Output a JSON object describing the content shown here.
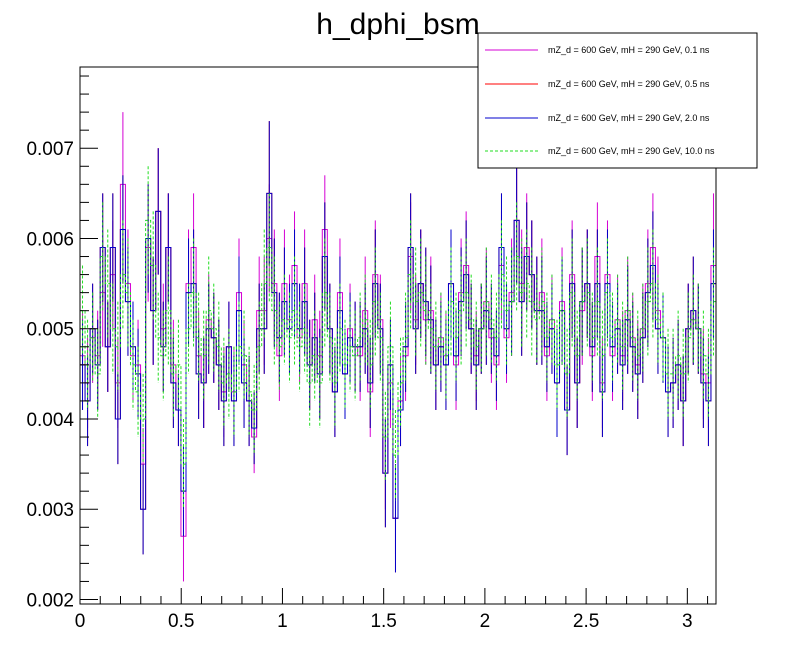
{
  "chart_data": {
    "type": "histogram",
    "title": "h_dphi_bsm",
    "xlabel": "",
    "ylabel": "",
    "xlim": [
      0,
      3.1416
    ],
    "ylim": [
      0.00195,
      0.0079
    ],
    "x_ticks": [
      0,
      0.5,
      1,
      1.5,
      2,
      2.5,
      3
    ],
    "x_tick_labels": [
      "0",
      "0.5",
      "1",
      "1.5",
      "2",
      "2.5",
      "3"
    ],
    "y_ticks": [
      0.002,
      0.003,
      0.004,
      0.005,
      0.006,
      0.007
    ],
    "y_tick_labels": [
      "0.002",
      "0.003",
      "0.004",
      "0.005",
      "0.006",
      "0.007"
    ],
    "legend_position": "top-right",
    "n_bins": 126,
    "series": [
      {
        "name": "mZ_d = 600 GeV, mH = 290 GeV, 0.1 ns",
        "color": "#d400d4",
        "line": "solid",
        "values": [
          0.0047,
          0.0044,
          0.0049,
          0.0047,
          0.0054,
          0.0048,
          0.0056,
          0.0044,
          0.0066,
          0.0055,
          0.0047,
          0.0046,
          0.0035,
          0.0059,
          0.0052,
          0.0063,
          0.005,
          0.0059,
          0.0046,
          0.0041,
          0.0027,
          0.0055,
          0.0059,
          0.0047,
          0.0044,
          0.0051,
          0.0049,
          0.0046,
          0.0043,
          0.0048,
          0.0043,
          0.0054,
          0.0046,
          0.0042,
          0.0038,
          0.0052,
          0.0052,
          0.006,
          0.0055,
          0.0047,
          0.0055,
          0.0051,
          0.0057,
          0.0049,
          0.0055,
          0.0046,
          0.0051,
          0.0047,
          0.0061,
          0.005,
          0.0043,
          0.0054,
          0.0045,
          0.005,
          0.0048,
          0.0047,
          0.0052,
          0.0043,
          0.0056,
          0.0051,
          0.0034,
          0.0044,
          0.0029,
          0.0042,
          0.0047,
          0.0058,
          0.0051,
          0.0055,
          0.0051,
          0.0052,
          0.0046,
          0.0049,
          0.0047,
          0.0055,
          0.0046,
          0.0054,
          0.0057,
          0.005,
          0.0047,
          0.005,
          0.0053,
          0.0049,
          0.0046,
          0.0057,
          0.0049,
          0.0054,
          0.0062,
          0.0055,
          0.0059,
          0.0056,
          0.0052,
          0.0054,
          0.0047,
          0.0051,
          0.0044,
          0.0053,
          0.0041,
          0.0056,
          0.0044,
          0.0052,
          0.0055,
          0.0047,
          0.0058,
          0.0044,
          0.0056,
          0.0047,
          0.0051,
          0.0047,
          0.0052,
          0.0049,
          0.0046,
          0.005,
          0.0055,
          0.0059,
          0.0052,
          0.0049,
          0.0043,
          0.0044,
          0.0046,
          0.0042,
          0.005,
          0.0051,
          0.005,
          0.0045,
          0.0044,
          0.0057
        ],
        "errors": [
          0.0005,
          0.0005,
          0.0005,
          0.0005,
          0.0006,
          0.0005,
          0.0006,
          0.0005,
          0.0008,
          0.0006,
          0.0005,
          0.0005,
          0.0004,
          0.0006,
          0.0006,
          0.0007,
          0.0005,
          0.0006,
          0.0005,
          0.0004,
          0.0005,
          0.0006,
          0.0006,
          0.0005,
          0.0005,
          0.0005,
          0.0005,
          0.0005,
          0.0005,
          0.0005,
          0.0005,
          0.0006,
          0.0005,
          0.0005,
          0.0004,
          0.0006,
          0.0006,
          0.0006,
          0.0006,
          0.0005,
          0.0006,
          0.0005,
          0.0006,
          0.0005,
          0.0006,
          0.0005,
          0.0005,
          0.0005,
          0.0006,
          0.0005,
          0.0005,
          0.0006,
          0.0005,
          0.0005,
          0.0005,
          0.0005,
          0.0006,
          0.0005,
          0.0006,
          0.0005,
          0.0004,
          0.0005,
          0.0004,
          0.0005,
          0.0005,
          0.0006,
          0.0005,
          0.0006,
          0.0005,
          0.0006,
          0.0005,
          0.0005,
          0.0005,
          0.0006,
          0.0005,
          0.0006,
          0.0006,
          0.0005,
          0.0005,
          0.0005,
          0.0006,
          0.0005,
          0.0005,
          0.0006,
          0.0005,
          0.0006,
          0.0007,
          0.0006,
          0.0006,
          0.0006,
          0.0006,
          0.0006,
          0.0005,
          0.0005,
          0.0005,
          0.0006,
          0.0005,
          0.0006,
          0.0005,
          0.0006,
          0.0006,
          0.0005,
          0.0006,
          0.0005,
          0.0006,
          0.0005,
          0.0005,
          0.0005,
          0.0006,
          0.0005,
          0.0005,
          0.0005,
          0.0006,
          0.0006,
          0.0006,
          0.0005,
          0.0005,
          0.0005,
          0.0005,
          0.0005,
          0.0005,
          0.0005,
          0.0005,
          0.0005,
          0.0005,
          0.0008
        ]
      },
      {
        "name": "mZ_d = 600 GeV, mH = 290 GeV, 0.5 ns",
        "color": "#ff0000",
        "line": "solid",
        "values": [
          0.0046,
          0.0042,
          0.005,
          0.0046,
          0.0059,
          0.0048,
          0.0059,
          0.004,
          0.0061,
          0.0053,
          0.0048,
          0.0045,
          0.003,
          0.006,
          0.0052,
          0.0063,
          0.0048,
          0.0059,
          0.0044,
          0.0041,
          0.0032,
          0.0054,
          0.0055,
          0.0045,
          0.0044,
          0.005,
          0.0049,
          0.0046,
          0.0042,
          0.0048,
          0.0042,
          0.0052,
          0.0044,
          0.0042,
          0.0039,
          0.005,
          0.005,
          0.0065,
          0.0054,
          0.0049,
          0.0053,
          0.005,
          0.0055,
          0.005,
          0.0053,
          0.0046,
          0.0049,
          0.0045,
          0.0058,
          0.005,
          0.0043,
          0.0052,
          0.0045,
          0.0049,
          0.0048,
          0.0048,
          0.005,
          0.0044,
          0.0055,
          0.005,
          0.0034,
          0.0046,
          0.0029,
          0.0041,
          0.0048,
          0.0059,
          0.005,
          0.0055,
          0.0053,
          0.0051,
          0.0046,
          0.0048,
          0.0046,
          0.0055,
          0.0047,
          0.0053,
          0.0056,
          0.005,
          0.0046,
          0.005,
          0.0052,
          0.005,
          0.0047,
          0.0059,
          0.005,
          0.0053,
          0.0062,
          0.0053,
          0.0058,
          0.0056,
          0.0052,
          0.0052,
          0.0048,
          0.005,
          0.0044,
          0.0052,
          0.0041,
          0.0055,
          0.0044,
          0.0053,
          0.0055,
          0.0048,
          0.0055,
          0.0043,
          0.0055,
          0.0048,
          0.005,
          0.0046,
          0.0051,
          0.0048,
          0.0045,
          0.0049,
          0.0054,
          0.0057,
          0.005,
          0.0049,
          0.0043,
          0.0044,
          0.0046,
          0.0042,
          0.005,
          0.0052,
          0.005,
          0.0044,
          0.0042,
          0.0055
        ],
        "errors": [
          0.0005,
          0.0005,
          0.0005,
          0.0005,
          0.0006,
          0.0005,
          0.0006,
          0.0005,
          0.0006,
          0.0006,
          0.0005,
          0.0005,
          0.0005,
          0.0006,
          0.0006,
          0.0007,
          0.0005,
          0.0006,
          0.0005,
          0.0004,
          0.0005,
          0.0006,
          0.0006,
          0.0005,
          0.0005,
          0.0005,
          0.0005,
          0.0005,
          0.0005,
          0.0005,
          0.0005,
          0.0006,
          0.0005,
          0.0005,
          0.0004,
          0.0005,
          0.0005,
          0.0008,
          0.0006,
          0.0005,
          0.0006,
          0.0005,
          0.0006,
          0.0005,
          0.0006,
          0.0005,
          0.0005,
          0.0005,
          0.0006,
          0.0005,
          0.0005,
          0.0006,
          0.0005,
          0.0005,
          0.0005,
          0.0005,
          0.0005,
          0.0005,
          0.0006,
          0.0005,
          0.0006,
          0.0005,
          0.0006,
          0.0004,
          0.0005,
          0.0006,
          0.0005,
          0.0006,
          0.0006,
          0.0006,
          0.0005,
          0.0005,
          0.0005,
          0.0006,
          0.0005,
          0.0006,
          0.0006,
          0.0005,
          0.0005,
          0.0005,
          0.0006,
          0.0005,
          0.0005,
          0.0006,
          0.0005,
          0.0006,
          0.0007,
          0.0006,
          0.0006,
          0.0006,
          0.0006,
          0.0006,
          0.0005,
          0.0005,
          0.0006,
          0.0006,
          0.0005,
          0.0006,
          0.0005,
          0.0006,
          0.0006,
          0.0005,
          0.0006,
          0.0005,
          0.0006,
          0.0005,
          0.0005,
          0.0005,
          0.0006,
          0.0005,
          0.0005,
          0.0005,
          0.0006,
          0.0006,
          0.0005,
          0.0005,
          0.0005,
          0.0005,
          0.0005,
          0.0005,
          0.0005,
          0.0006,
          0.0005,
          0.0005,
          0.0005,
          0.0006
        ]
      },
      {
        "name": "mZ_d = 600 GeV, mH = 290 GeV, 2.0 ns",
        "color": "#0000cc",
        "line": "solid",
        "values": [
          0.0046,
          0.0042,
          0.005,
          0.0046,
          0.0059,
          0.0048,
          0.0059,
          0.004,
          0.0061,
          0.0053,
          0.0048,
          0.0045,
          0.003,
          0.006,
          0.0052,
          0.0063,
          0.0048,
          0.0059,
          0.0044,
          0.0041,
          0.0032,
          0.0054,
          0.0055,
          0.0045,
          0.0044,
          0.005,
          0.0049,
          0.0046,
          0.0042,
          0.0048,
          0.0042,
          0.0052,
          0.0044,
          0.0042,
          0.0039,
          0.005,
          0.005,
          0.0065,
          0.0054,
          0.0049,
          0.0053,
          0.005,
          0.0055,
          0.005,
          0.0053,
          0.0046,
          0.0049,
          0.0045,
          0.0058,
          0.005,
          0.0043,
          0.0052,
          0.0045,
          0.0049,
          0.0048,
          0.0048,
          0.005,
          0.0044,
          0.0055,
          0.005,
          0.0034,
          0.0046,
          0.0029,
          0.0041,
          0.0048,
          0.0059,
          0.005,
          0.0055,
          0.0053,
          0.0051,
          0.0046,
          0.0048,
          0.0046,
          0.0055,
          0.0047,
          0.0053,
          0.0056,
          0.005,
          0.0046,
          0.005,
          0.0052,
          0.005,
          0.0047,
          0.0059,
          0.005,
          0.0053,
          0.0062,
          0.0053,
          0.0058,
          0.0056,
          0.0052,
          0.0052,
          0.0048,
          0.005,
          0.0044,
          0.0052,
          0.0041,
          0.0055,
          0.0044,
          0.0053,
          0.0055,
          0.0048,
          0.0055,
          0.0043,
          0.0055,
          0.0048,
          0.005,
          0.0046,
          0.0051,
          0.0048,
          0.0045,
          0.0049,
          0.0054,
          0.0057,
          0.005,
          0.0049,
          0.0043,
          0.0044,
          0.0046,
          0.0042,
          0.005,
          0.0052,
          0.005,
          0.0044,
          0.0042,
          0.0055
        ],
        "errors": [
          0.0005,
          0.0005,
          0.0005,
          0.0005,
          0.0006,
          0.0005,
          0.0006,
          0.0005,
          0.0006,
          0.0006,
          0.0005,
          0.0005,
          0.0005,
          0.0006,
          0.0006,
          0.0007,
          0.0005,
          0.0006,
          0.0005,
          0.0004,
          0.0005,
          0.0006,
          0.0006,
          0.0005,
          0.0005,
          0.0005,
          0.0005,
          0.0005,
          0.0005,
          0.0005,
          0.0005,
          0.0006,
          0.0005,
          0.0005,
          0.0004,
          0.0005,
          0.0005,
          0.0008,
          0.0006,
          0.0005,
          0.0006,
          0.0005,
          0.0006,
          0.0005,
          0.0006,
          0.0005,
          0.0005,
          0.0005,
          0.0006,
          0.0005,
          0.0005,
          0.0006,
          0.0005,
          0.0005,
          0.0005,
          0.0005,
          0.0005,
          0.0005,
          0.0006,
          0.0005,
          0.0006,
          0.0005,
          0.0006,
          0.0004,
          0.0005,
          0.0006,
          0.0005,
          0.0006,
          0.0006,
          0.0006,
          0.0005,
          0.0005,
          0.0005,
          0.0006,
          0.0005,
          0.0006,
          0.0006,
          0.0005,
          0.0005,
          0.0005,
          0.0006,
          0.0005,
          0.0005,
          0.0006,
          0.0005,
          0.0006,
          0.0007,
          0.0006,
          0.0006,
          0.0006,
          0.0006,
          0.0006,
          0.0005,
          0.0005,
          0.0006,
          0.0006,
          0.0005,
          0.0006,
          0.0005,
          0.0006,
          0.0006,
          0.0005,
          0.0006,
          0.0005,
          0.0006,
          0.0005,
          0.0005,
          0.0005,
          0.0006,
          0.0005,
          0.0005,
          0.0005,
          0.0006,
          0.0006,
          0.0005,
          0.0005,
          0.0005,
          0.0005,
          0.0005,
          0.0005,
          0.0005,
          0.0006,
          0.0005,
          0.0005,
          0.0005,
          0.0006
        ]
      },
      {
        "name": "mZ_d = 600 GeV, mH = 290 GeV, 10.0 ns",
        "color": "#22dd22",
        "line": "dashed",
        "values": [
          0.0052,
          0.0046,
          0.0049,
          0.0045,
          0.0058,
          0.0055,
          0.005,
          0.0048,
          0.0056,
          0.0054,
          0.0046,
          0.0043,
          0.004,
          0.0062,
          0.0057,
          0.0049,
          0.0047,
          0.0052,
          0.0045,
          0.0046,
          0.0035,
          0.005,
          0.0054,
          0.0049,
          0.0047,
          0.0052,
          0.005,
          0.0048,
          0.0044,
          0.0045,
          0.0043,
          0.0048,
          0.0047,
          0.0043,
          0.0041,
          0.0048,
          0.0055,
          0.0059,
          0.0052,
          0.0048,
          0.0051,
          0.0049,
          0.0052,
          0.0048,
          0.005,
          0.0044,
          0.0047,
          0.0044,
          0.0054,
          0.0049,
          0.0044,
          0.005,
          0.0046,
          0.0048,
          0.0047,
          0.0049,
          0.0051,
          0.0046,
          0.0053,
          0.0049,
          0.0038,
          0.0048,
          0.0036,
          0.0044,
          0.0049,
          0.0056,
          0.0053,
          0.0054,
          0.0052,
          0.005,
          0.0048,
          0.0049,
          0.0047,
          0.0053,
          0.0049,
          0.0052,
          0.0054,
          0.0051,
          0.0048,
          0.005,
          0.0053,
          0.0051,
          0.0049,
          0.0056,
          0.0052,
          0.0053,
          0.0058,
          0.0054,
          0.0055,
          0.0053,
          0.0051,
          0.0053,
          0.0049,
          0.0051,
          0.0046,
          0.0052,
          0.0045,
          0.0054,
          0.0047,
          0.0053,
          0.0054,
          0.0049,
          0.0053,
          0.0047,
          0.0054,
          0.0049,
          0.0051,
          0.0048,
          0.0052,
          0.0049,
          0.0047,
          0.005,
          0.0053,
          0.0055,
          0.0051,
          0.0049,
          0.0045,
          0.0045,
          0.0047,
          0.0045,
          0.0049,
          0.0051,
          0.005,
          0.0047,
          0.0045,
          0.0053
        ],
        "errors": [
          0.0005,
          0.0005,
          0.0005,
          0.0005,
          0.0006,
          0.0006,
          0.0005,
          0.0005,
          0.0006,
          0.0006,
          0.0005,
          0.0005,
          0.0005,
          0.0006,
          0.0006,
          0.0005,
          0.0005,
          0.0006,
          0.0005,
          0.0005,
          0.0005,
          0.0005,
          0.0006,
          0.0005,
          0.0005,
          0.0006,
          0.0005,
          0.0005,
          0.0005,
          0.0005,
          0.0005,
          0.0005,
          0.0005,
          0.0005,
          0.0005,
          0.0005,
          0.0006,
          0.0006,
          0.0006,
          0.0005,
          0.0005,
          0.0005,
          0.0006,
          0.0005,
          0.0005,
          0.0005,
          0.0005,
          0.0005,
          0.0006,
          0.0005,
          0.0005,
          0.0005,
          0.0005,
          0.0005,
          0.0005,
          0.0005,
          0.0005,
          0.0005,
          0.0006,
          0.0005,
          0.0005,
          0.0005,
          0.0005,
          0.0005,
          0.0005,
          0.0006,
          0.0006,
          0.0006,
          0.0006,
          0.0005,
          0.0005,
          0.0005,
          0.0005,
          0.0006,
          0.0005,
          0.0006,
          0.0006,
          0.0005,
          0.0005,
          0.0005,
          0.0006,
          0.0005,
          0.0005,
          0.0006,
          0.0006,
          0.0006,
          0.0006,
          0.0006,
          0.0006,
          0.0006,
          0.0005,
          0.0006,
          0.0005,
          0.0005,
          0.0005,
          0.0006,
          0.0005,
          0.0006,
          0.0005,
          0.0006,
          0.0006,
          0.0005,
          0.0006,
          0.0005,
          0.0006,
          0.0005,
          0.0005,
          0.0005,
          0.0006,
          0.0005,
          0.0005,
          0.0005,
          0.0006,
          0.0006,
          0.0005,
          0.0005,
          0.0005,
          0.0005,
          0.0005,
          0.0005,
          0.0005,
          0.0005,
          0.0005,
          0.0005,
          0.0005,
          0.0006
        ]
      }
    ]
  }
}
